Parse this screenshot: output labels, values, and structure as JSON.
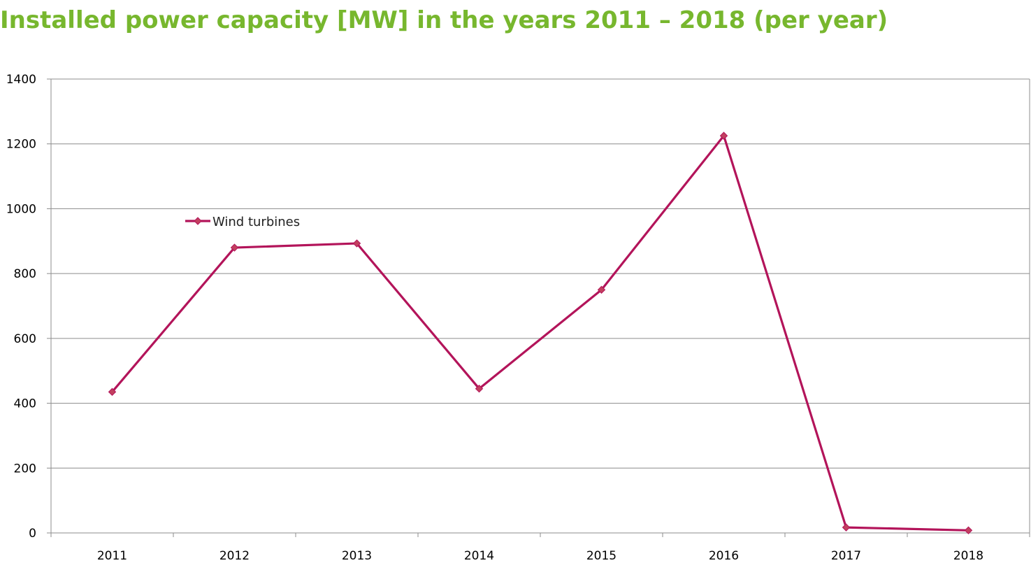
{
  "colors": {
    "title": "#77b72e",
    "series": "#b3145a",
    "marker": "#c2405f",
    "grid": "#8c8c8c",
    "axis": "#8c8c8c"
  },
  "chart_data": {
    "type": "line",
    "title": "Installed power capacity [MW] in the years 2011 – 2018 (per year)",
    "xlabel": "",
    "ylabel": "",
    "categories": [
      "2011",
      "2012",
      "2013",
      "2014",
      "2015",
      "2016",
      "2017",
      "2018"
    ],
    "series": [
      {
        "name": "Wind turbines",
        "values": [
          435,
          880,
          893,
          445,
          750,
          1225,
          17,
          8
        ],
        "marker": "diamond-icon"
      }
    ],
    "ylim": [
      0,
      1400
    ],
    "yticks": [
      "0",
      "200",
      "400",
      "600",
      "800",
      "1000",
      "1200",
      "1400"
    ],
    "grid": true,
    "legend_position": "top-left inside plot"
  }
}
